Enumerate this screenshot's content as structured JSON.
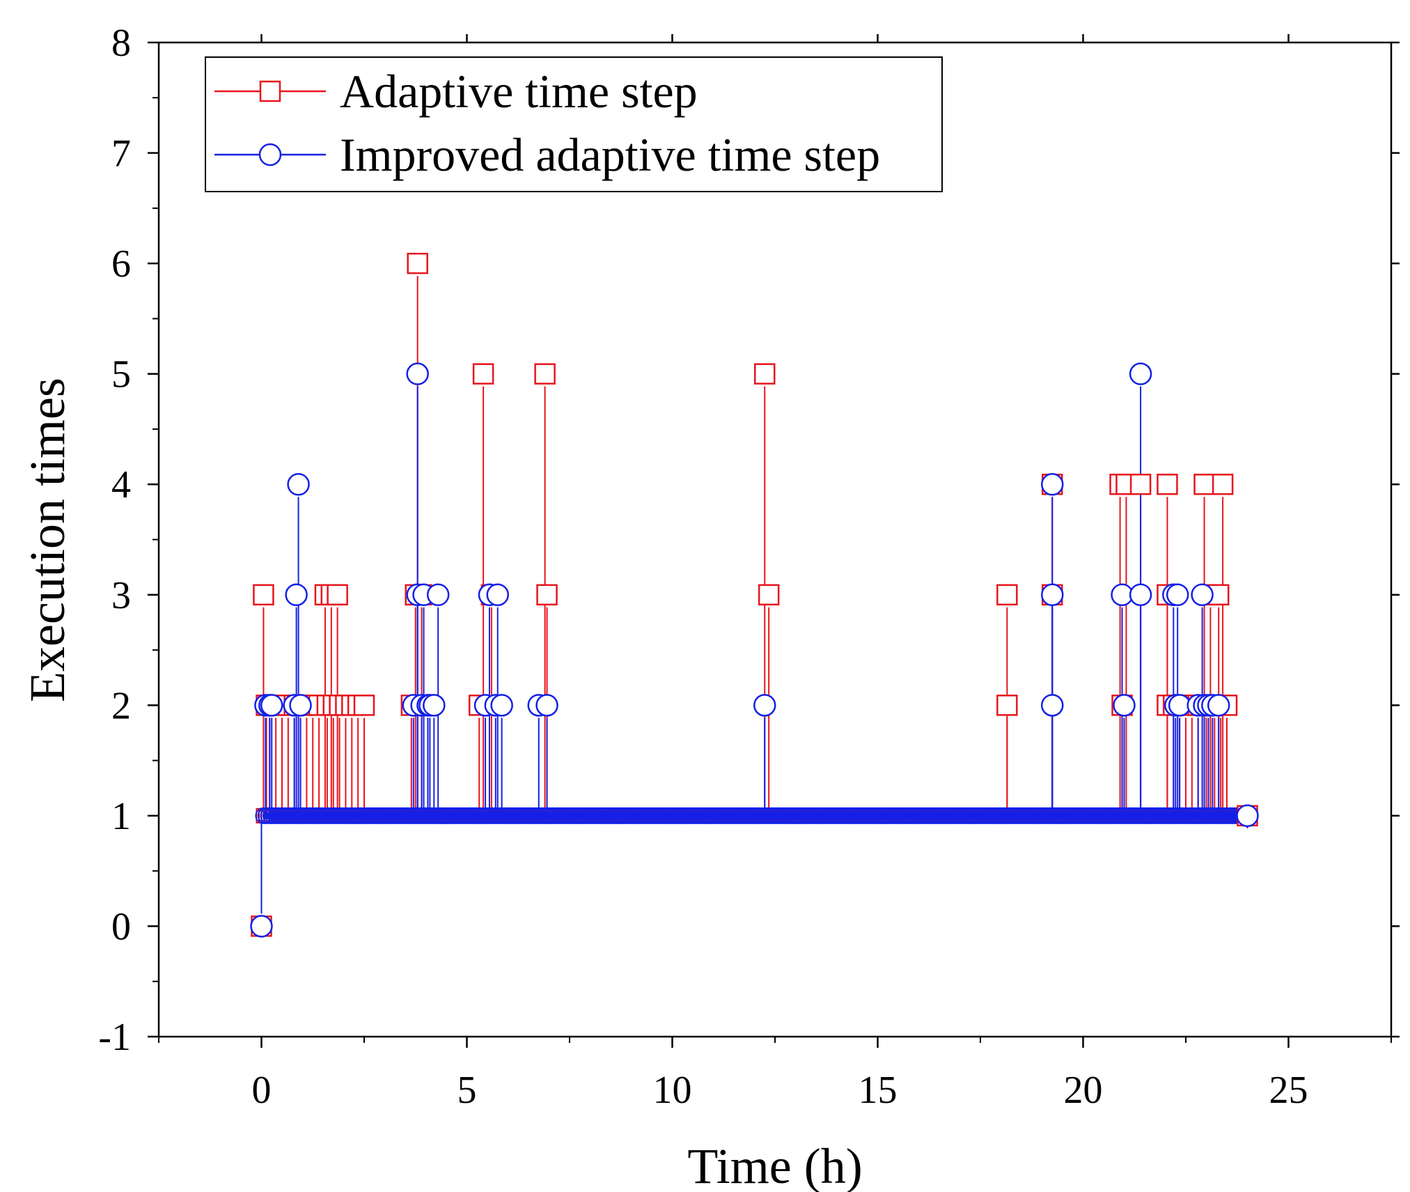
{
  "colors": {
    "series_adaptive": "#e8141c",
    "series_improved": "#1420e6",
    "axis": "#000000",
    "background": "#ffffff"
  },
  "chart_data": {
    "type": "scatter",
    "title": "",
    "xlabel": "Time (h)",
    "ylabel": "Execution times",
    "xlim": [
      -2.5,
      27.5
    ],
    "ylim": [
      -1,
      8
    ],
    "xticks": [
      0,
      5,
      10,
      15,
      20,
      25
    ],
    "yticks": [
      -1,
      0,
      1,
      2,
      3,
      4,
      5,
      6,
      7,
      8
    ],
    "x_minor_step": 2.5,
    "y_minor_step": 0.5,
    "grid": false,
    "legend": {
      "position": "top-left",
      "entries": [
        "Adaptive time step",
        "Improved adaptive time step"
      ]
    },
    "baseline": {
      "value": 1,
      "x_start": 0.05,
      "x_end": 24.0
    },
    "series": [
      {
        "name": "Adaptive time step",
        "marker": "square",
        "color": "#e8141c",
        "points": [
          [
            0,
            0
          ],
          [
            0.05,
            3
          ],
          [
            0.12,
            2
          ],
          [
            0.2,
            2
          ],
          [
            0.35,
            2
          ],
          [
            0.5,
            2
          ],
          [
            0.65,
            2
          ],
          [
            0.8,
            2
          ],
          [
            0.95,
            2
          ],
          [
            1.1,
            2
          ],
          [
            1.25,
            2
          ],
          [
            1.4,
            2
          ],
          [
            1.55,
            3
          ],
          [
            1.6,
            2
          ],
          [
            1.7,
            3
          ],
          [
            1.75,
            2
          ],
          [
            1.85,
            3
          ],
          [
            1.9,
            2
          ],
          [
            2.05,
            2
          ],
          [
            2.2,
            2
          ],
          [
            2.35,
            2
          ],
          [
            2.5,
            2
          ],
          [
            3.65,
            2
          ],
          [
            3.75,
            3
          ],
          [
            3.8,
            6
          ],
          [
            3.9,
            3
          ],
          [
            4.05,
            2
          ],
          [
            5.3,
            2
          ],
          [
            5.4,
            5
          ],
          [
            5.6,
            3
          ],
          [
            6.9,
            5
          ],
          [
            6.95,
            3
          ],
          [
            12.25,
            5
          ],
          [
            12.35,
            3
          ],
          [
            18.15,
            3
          ],
          [
            18.15,
            2
          ],
          [
            19.25,
            4
          ],
          [
            19.25,
            3
          ],
          [
            20.9,
            4
          ],
          [
            20.95,
            2
          ],
          [
            21.05,
            4
          ],
          [
            21.4,
            4
          ],
          [
            22.05,
            4
          ],
          [
            22.05,
            3
          ],
          [
            22.05,
            2
          ],
          [
            22.2,
            2
          ],
          [
            22.35,
            2
          ],
          [
            22.5,
            2
          ],
          [
            22.65,
            2
          ],
          [
            22.8,
            2
          ],
          [
            22.95,
            4
          ],
          [
            23.0,
            2
          ],
          [
            23.1,
            3
          ],
          [
            23.2,
            2
          ],
          [
            23.3,
            3
          ],
          [
            23.35,
            2
          ],
          [
            23.4,
            4
          ],
          [
            23.5,
            2
          ],
          [
            24.0,
            1
          ]
        ]
      },
      {
        "name": "Improved adaptive time step",
        "marker": "circle",
        "color": "#1420e6",
        "points": [
          [
            0,
            0
          ],
          [
            0.1,
            2
          ],
          [
            0.2,
            2
          ],
          [
            0.25,
            2
          ],
          [
            0.8,
            2
          ],
          [
            0.85,
            3
          ],
          [
            0.9,
            4
          ],
          [
            0.95,
            2
          ],
          [
            3.8,
            5
          ],
          [
            3.8,
            3
          ],
          [
            3.7,
            2
          ],
          [
            3.9,
            2
          ],
          [
            3.95,
            3
          ],
          [
            4.05,
            2
          ],
          [
            4.1,
            2
          ],
          [
            4.2,
            2
          ],
          [
            4.3,
            3
          ],
          [
            5.45,
            2
          ],
          [
            5.55,
            3
          ],
          [
            5.7,
            2
          ],
          [
            5.75,
            3
          ],
          [
            5.85,
            2
          ],
          [
            6.75,
            2
          ],
          [
            6.95,
            2
          ],
          [
            12.25,
            2
          ],
          [
            19.25,
            4
          ],
          [
            19.25,
            3
          ],
          [
            19.25,
            2
          ],
          [
            20.95,
            3
          ],
          [
            21.0,
            2
          ],
          [
            21.4,
            5
          ],
          [
            21.4,
            3
          ],
          [
            22.2,
            3
          ],
          [
            22.25,
            2
          ],
          [
            22.3,
            3
          ],
          [
            22.35,
            2
          ],
          [
            22.8,
            2
          ],
          [
            22.9,
            3
          ],
          [
            22.95,
            2
          ],
          [
            23.05,
            2
          ],
          [
            23.15,
            2
          ],
          [
            23.3,
            2
          ],
          [
            24.0,
            1
          ]
        ]
      }
    ]
  }
}
